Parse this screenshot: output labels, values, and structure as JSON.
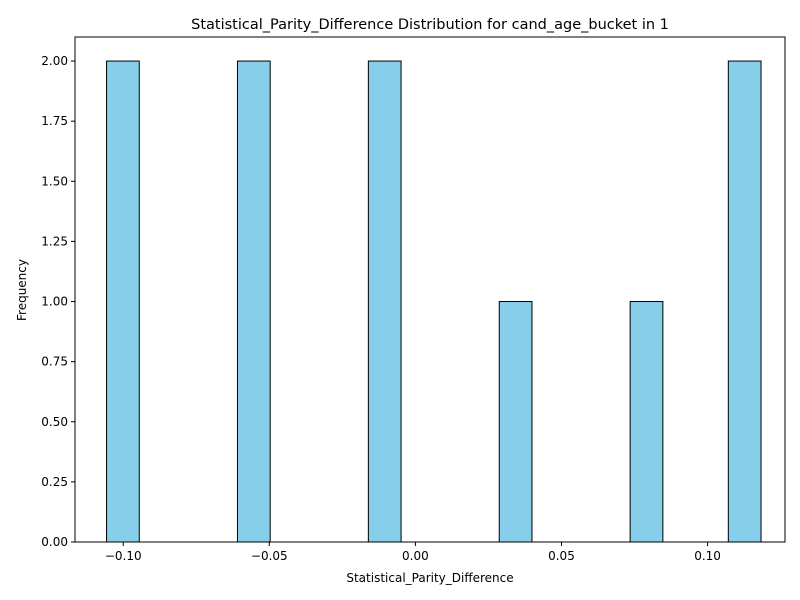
{
  "chart_data": {
    "type": "bar",
    "title": "Statistical_Parity_Difference Distribution for cand_age_bucket in 1",
    "xlabel": "Statistical_Parity_Difference",
    "ylabel": "Frequency",
    "xlim": [
      -0.1165,
      0.1265
    ],
    "ylim": [
      0,
      2.1
    ],
    "bin_width": 0.0112,
    "bins": [
      {
        "x0": -0.1057,
        "x1": -0.0945,
        "count": 2
      },
      {
        "x0": -0.0609,
        "x1": -0.0497,
        "count": 2
      },
      {
        "x0": -0.0161,
        "x1": -0.0049,
        "count": 2
      },
      {
        "x0": 0.0287,
        "x1": 0.0399,
        "count": 1
      },
      {
        "x0": 0.0735,
        "x1": 0.0847,
        "count": 1
      },
      {
        "x0": 0.1071,
        "x1": 0.1183,
        "count": 2
      }
    ],
    "xticks": [
      {
        "value": -0.1,
        "label": "−0.10"
      },
      {
        "value": -0.05,
        "label": "−0.05"
      },
      {
        "value": 0.0,
        "label": "0.00"
      },
      {
        "value": 0.05,
        "label": "0.05"
      },
      {
        "value": 0.1,
        "label": "0.10"
      }
    ],
    "yticks": [
      {
        "value": 0.0,
        "label": "0.00"
      },
      {
        "value": 0.25,
        "label": "0.25"
      },
      {
        "value": 0.5,
        "label": "0.50"
      },
      {
        "value": 0.75,
        "label": "0.75"
      },
      {
        "value": 1.0,
        "label": "1.00"
      },
      {
        "value": 1.25,
        "label": "1.25"
      },
      {
        "value": 1.5,
        "label": "1.50"
      },
      {
        "value": 1.75,
        "label": "1.75"
      },
      {
        "value": 2.0,
        "label": "2.00"
      }
    ],
    "grid": false,
    "colors": {
      "bar_fill": "#87ceeb",
      "bar_edge": "#000000"
    }
  }
}
